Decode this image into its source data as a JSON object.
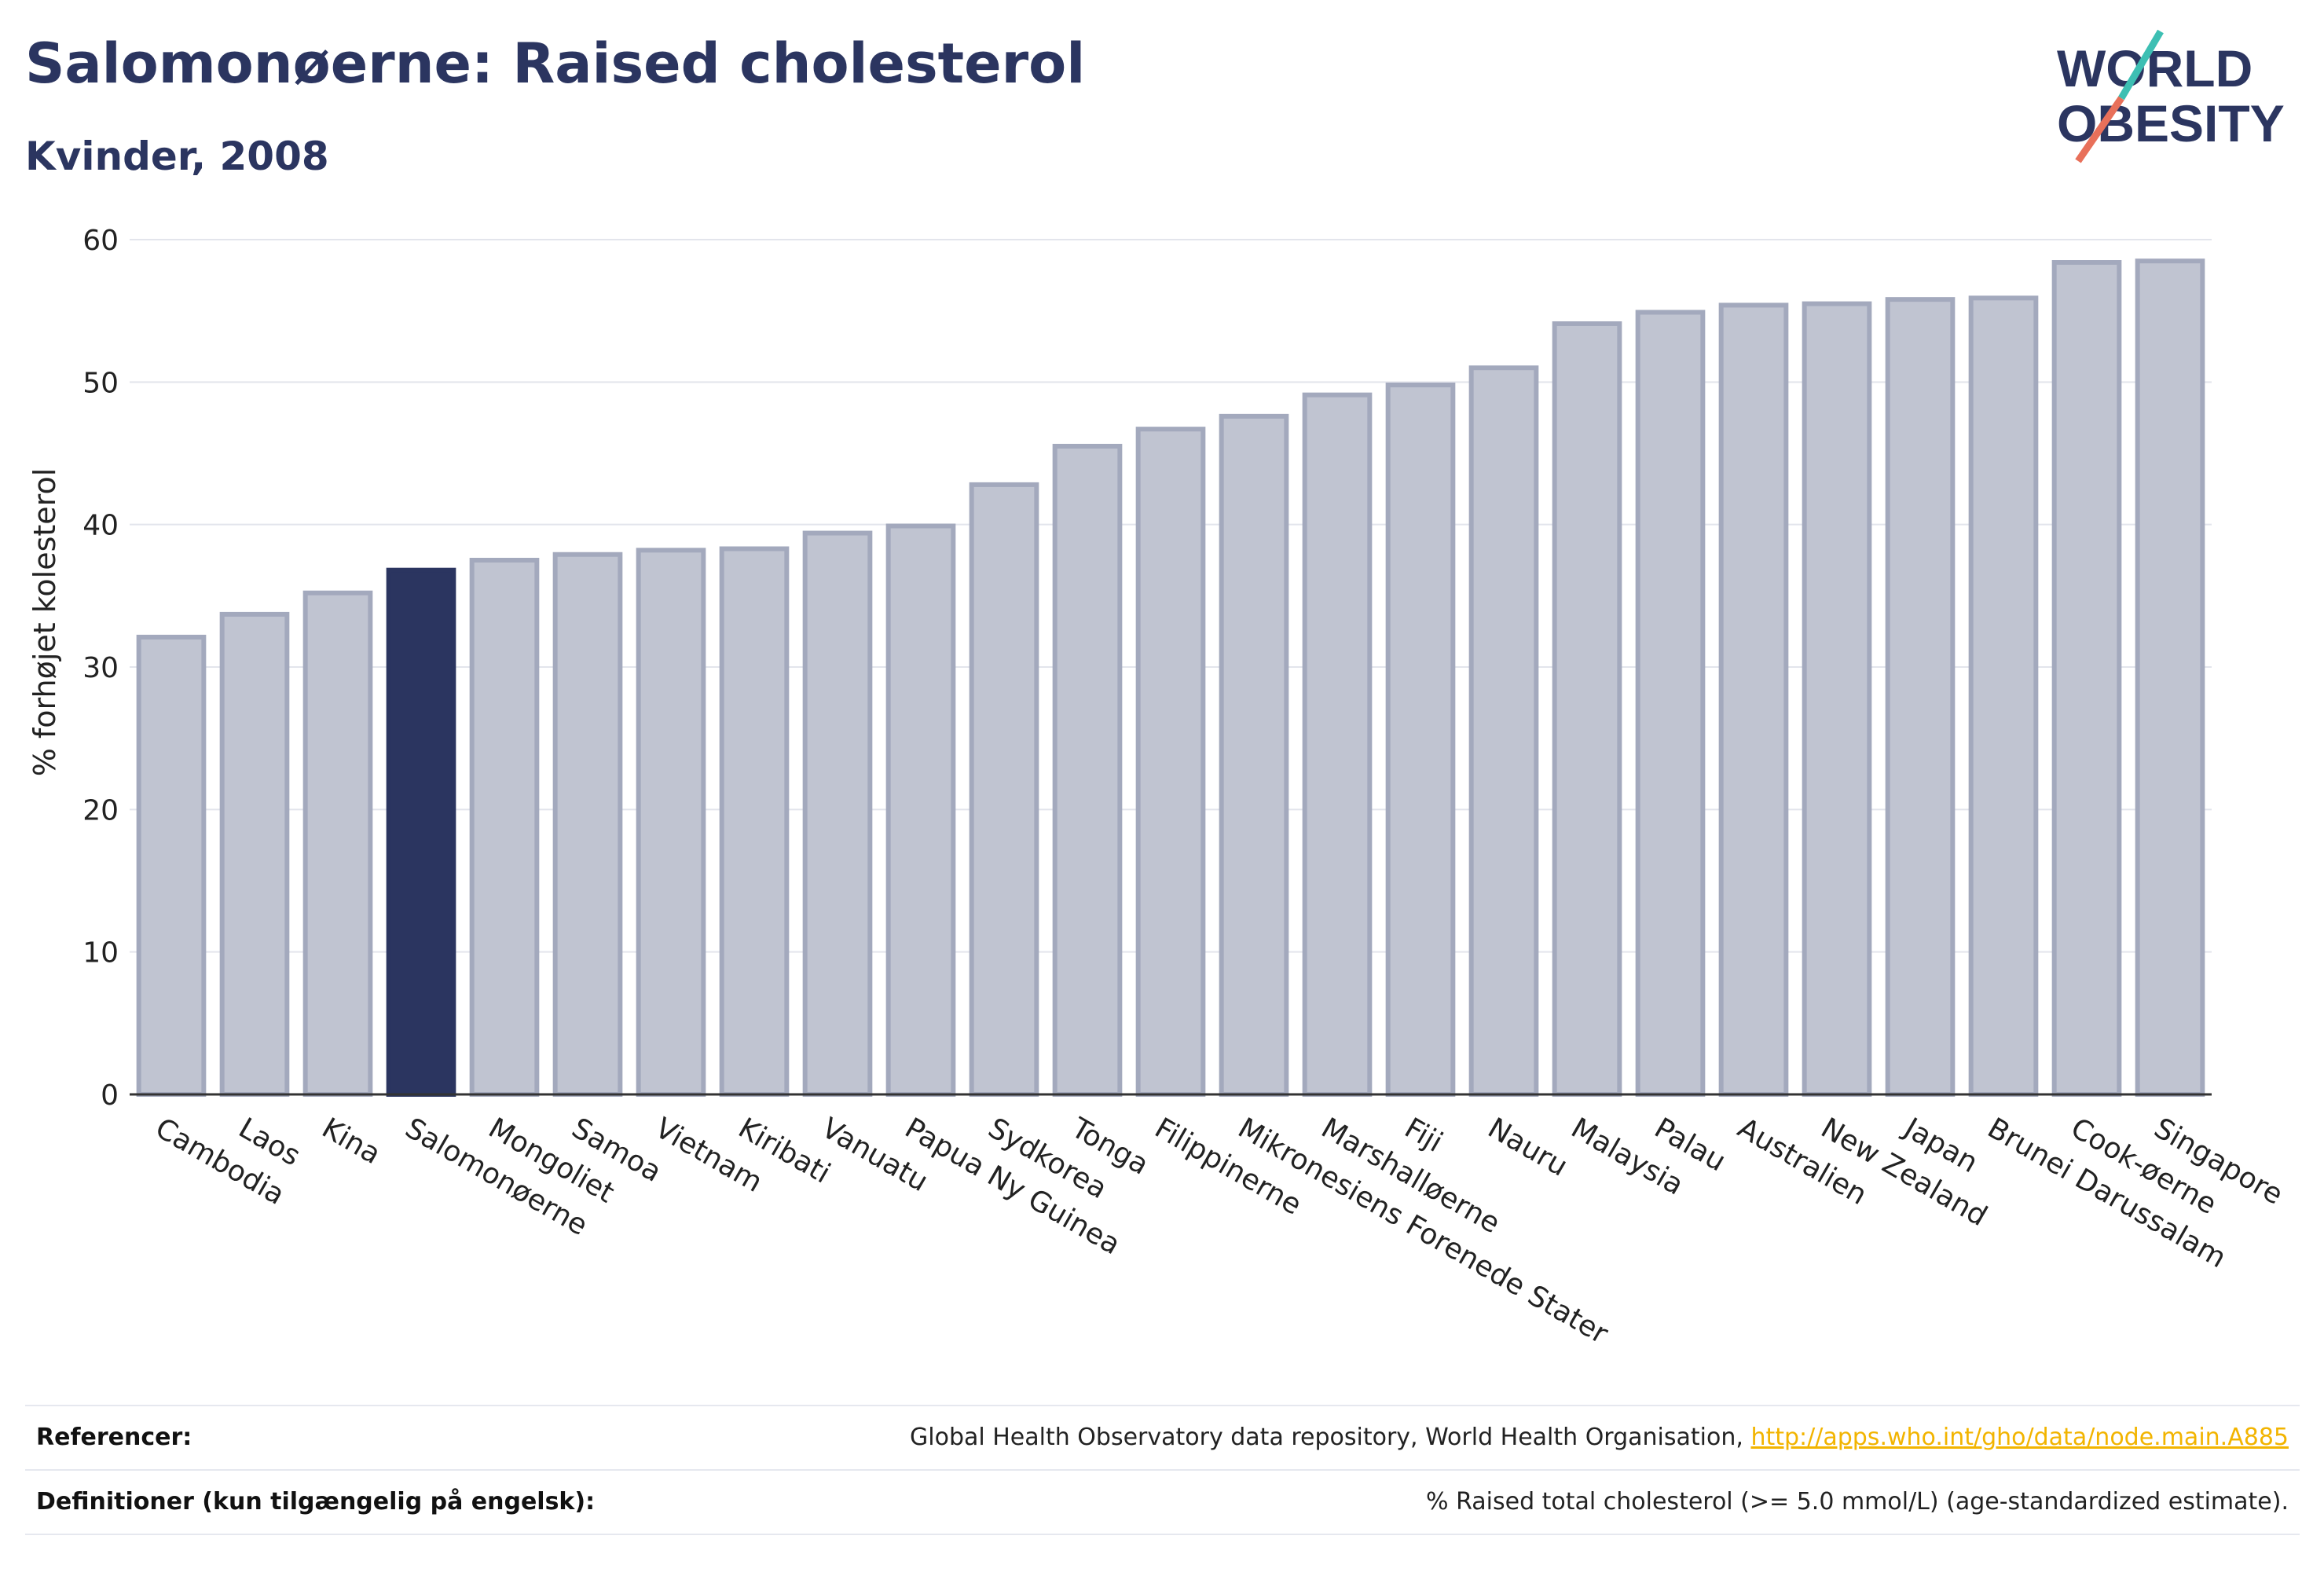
{
  "header": {
    "title": "Salomonøerne: Raised cholesterol",
    "subtitle": "Kvinder, 2008"
  },
  "logo": {
    "line1": "WORLD",
    "line2": "OBESITY"
  },
  "colors": {
    "highlight": "#2b3560",
    "bar": "#c0c4d1",
    "bar_border": "#a3a9bd",
    "title": "#2b3560",
    "link": "#f2b400"
  },
  "chart_data": {
    "type": "bar",
    "categories": [
      "Cambodia",
      "Laos",
      "Kina",
      "Salomonøerne",
      "Mongoliet",
      "Samoa",
      "Vietnam",
      "Kiribati",
      "Vanuatu",
      "Papua Ny Guinea",
      "Sydkorea",
      "Tonga",
      "Filippinerne",
      "Mikronesiens Forenede Stater",
      "Marshalløerne",
      "Fiji",
      "Nauru",
      "Malaysia",
      "Palau",
      "Australien",
      "New Zealand",
      "Japan",
      "Brunei Darussalam",
      "Cook-øerne",
      "Singapore"
    ],
    "values": [
      32.1,
      33.7,
      35.2,
      36.8,
      37.5,
      37.9,
      38.2,
      38.3,
      39.4,
      39.9,
      42.8,
      45.5,
      46.7,
      47.6,
      49.1,
      49.8,
      51.0,
      54.1,
      54.9,
      55.4,
      55.5,
      55.8,
      55.9,
      58.4,
      58.5
    ],
    "highlight": "Salomonøerne",
    "ylabel": "% forhøjet kolesterol",
    "ylim": [
      0,
      60
    ],
    "yticks": [
      0,
      10,
      20,
      30,
      40,
      50,
      60
    ],
    "grid": true
  },
  "references": {
    "ref_label": "Referencer:",
    "ref_text": "Global Health Observatory data repository, World Health Organisation, ",
    "ref_link": "http://apps.who.int/gho/data/node.main.A885",
    "def_label": "Definitioner (kun tilgængelig på engelsk):",
    "def_text": "% Raised total cholesterol (>= 5.0 mmol/L) (age-standardized estimate)."
  }
}
